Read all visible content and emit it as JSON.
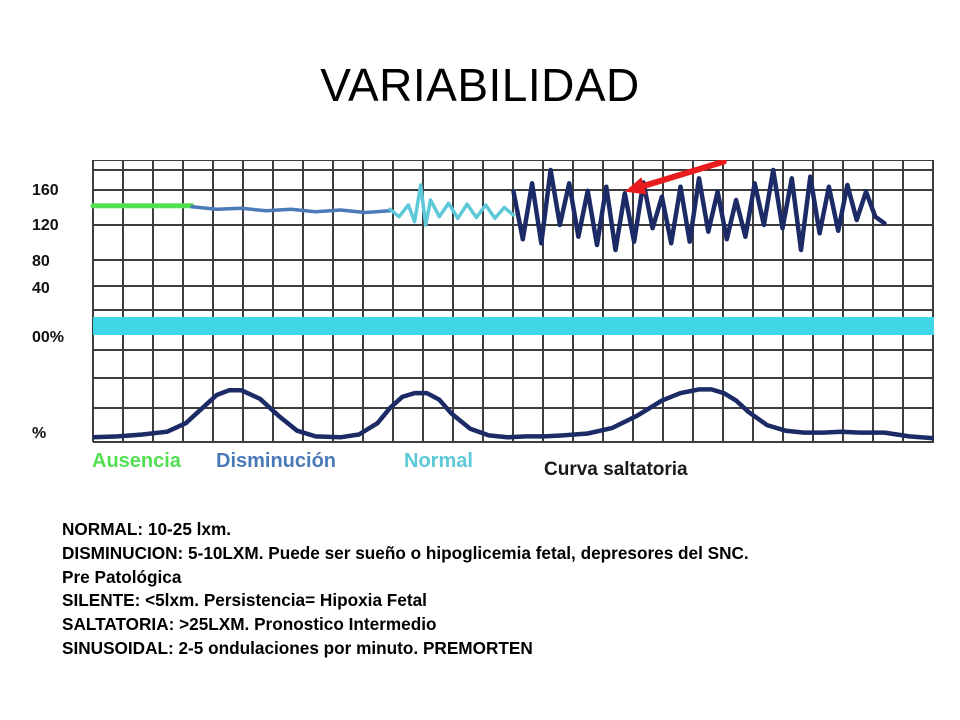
{
  "slide": {
    "title": "VARIABILIDAD"
  },
  "colors": {
    "grid": "#3d3d3d",
    "ausencia": "#52e052",
    "disminucion": "#4a7ab8",
    "normal": "#5cc8d8",
    "saltatoria": "#1c2a66",
    "uterine_band": "#3fd6e6",
    "arrow": "#e81c1c"
  },
  "chart_data": {
    "type": "line",
    "y_tick_labels": [
      "160",
      "120",
      "80",
      "40",
      "00%",
      "%"
    ],
    "segment_labels": [
      {
        "key": "ausencia",
        "text": "Ausencia"
      },
      {
        "key": "disminucion",
        "text": "Disminución"
      },
      {
        "key": "normal",
        "text": "Normal"
      },
      {
        "key": "saltatoria",
        "text": "Curva saltatoria"
      }
    ],
    "fhr_ylim": [
      0,
      180
    ],
    "series": [
      {
        "key": "ausencia",
        "t": [
          0,
          16
        ],
        "bpm": [
          125,
          125
        ]
      },
      {
        "key": "disminucion",
        "t": [
          16,
          20,
          24,
          28,
          32,
          36,
          40,
          44,
          48
        ],
        "bpm": [
          124,
          121,
          122,
          119,
          121,
          118,
          120,
          117,
          119
        ]
      },
      {
        "key": "normal",
        "t": [
          48,
          49.5,
          51,
          52,
          53,
          53.8,
          54.6,
          56,
          57.5,
          59,
          60.5,
          62,
          63.5,
          65,
          66.5,
          68
        ],
        "bpm": [
          121,
          112,
          126,
          106,
          150,
          102,
          132,
          112,
          128,
          110,
          127,
          111,
          126,
          110,
          123,
          114
        ]
      },
      {
        "key": "saltatoria",
        "t": [
          68,
          69.5,
          71,
          72.5,
          74,
          75.5,
          77,
          78.5,
          80,
          81.5,
          83,
          84.5,
          86,
          87.5,
          89,
          90.5,
          92,
          93.5,
          95,
          96.5,
          98,
          99.5,
          101,
          102.5,
          104,
          105.5,
          107,
          108.5,
          110,
          111.5,
          113,
          114.5,
          116,
          117.5,
          119,
          120.5,
          122,
          123.5,
          125,
          126.5,
          128
        ],
        "bpm": [
          142,
          85,
          152,
          80,
          168,
          102,
          152,
          88,
          143,
          78,
          148,
          72,
          140,
          82,
          153,
          98,
          136,
          80,
          148,
          82,
          158,
          94,
          142,
          85,
          132,
          88,
          152,
          102,
          168,
          98,
          158,
          72,
          160,
          92,
          148,
          95,
          150,
          108,
          142,
          112,
          104
        ]
      }
    ],
    "uterine": {
      "t": [
        0,
        4,
        8,
        12,
        15,
        18,
        20,
        22,
        24,
        27,
        30,
        33,
        36,
        40,
        43,
        46,
        48,
        50,
        52,
        54,
        56,
        58,
        61,
        64,
        67,
        70,
        73,
        76,
        80,
        84,
        88,
        92,
        95,
        98,
        100,
        102,
        104,
        106,
        109,
        112,
        115,
        118,
        121,
        124,
        128,
        132,
        136
      ],
      "value": [
        5,
        6,
        8,
        11,
        20,
        38,
        50,
        55,
        55,
        46,
        28,
        12,
        6,
        5,
        8,
        20,
        36,
        48,
        52,
        52,
        45,
        30,
        14,
        7,
        5,
        6,
        6,
        7,
        9,
        15,
        28,
        44,
        52,
        56,
        56,
        52,
        44,
        32,
        18,
        12,
        10,
        10,
        11,
        10,
        10,
        6,
        4
      ]
    },
    "uterine_ylim": [
      0,
      100
    ],
    "baseline_band": true,
    "arrow": {
      "from": [
        102,
        178
      ],
      "to": [
        86,
        142
      ]
    },
    "grid": true
  },
  "notes": [
    "NORMAL: 10-25 lxm.",
    "DISMINUCION: 5-10LXM. Puede ser  sueño o hipoglicemia fetal, depresores del SNC.",
    "Pre Patológica",
    "SILENTE: <5lxm. Persistencia= Hipoxia Fetal",
    "SALTATORIA: >25LXM. Pronostico Intermedio",
    "SINUSOIDAL:  2-5 ondulaciones  por minuto. PREMORTEN"
  ]
}
